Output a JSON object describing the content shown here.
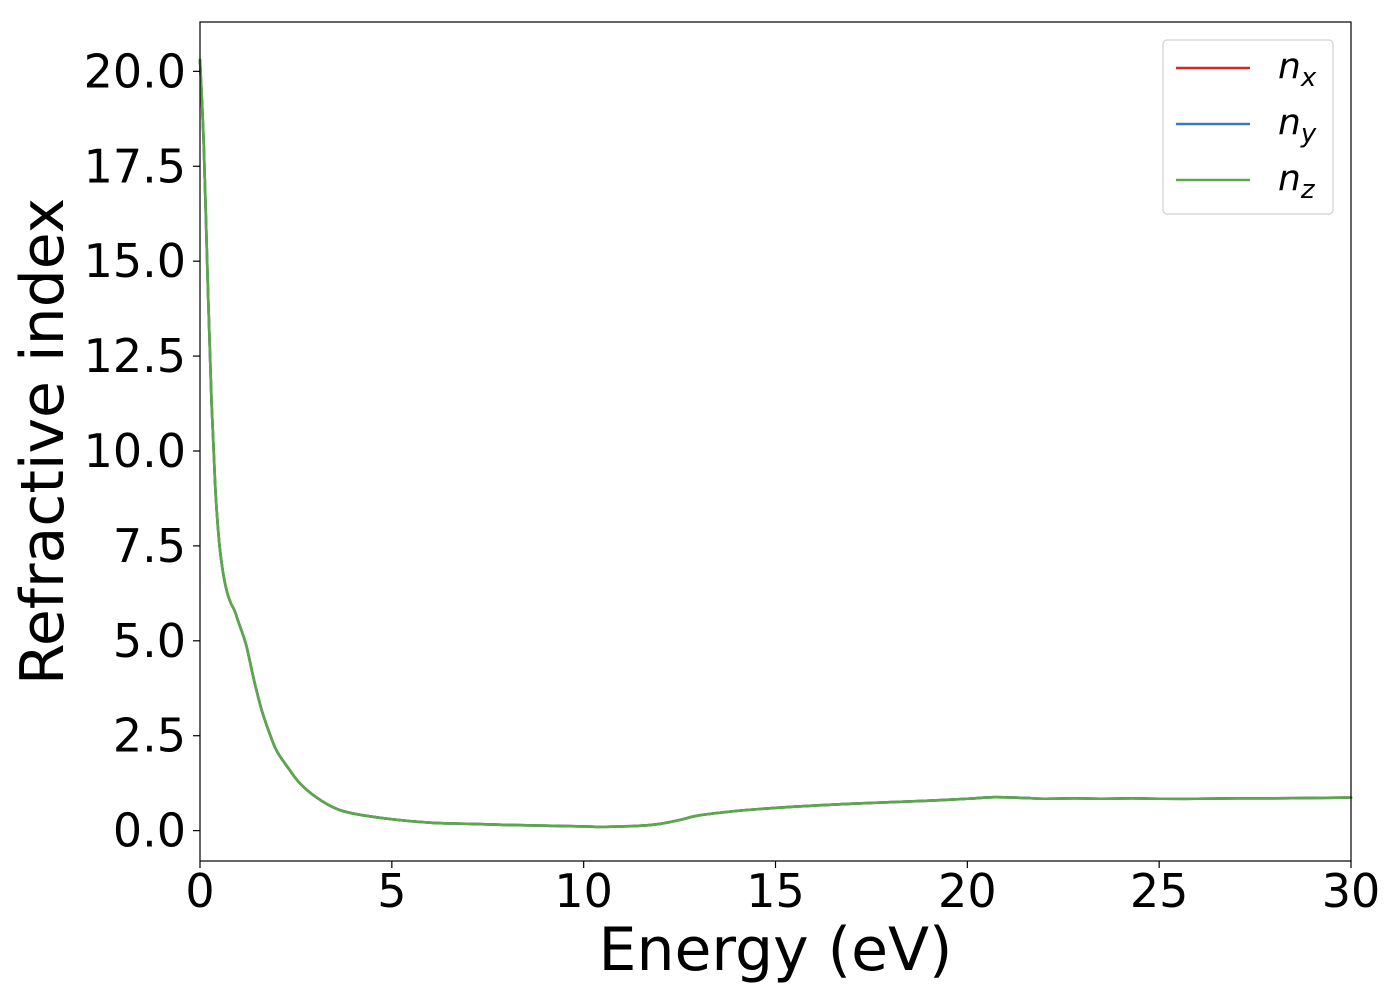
{
  "chart_data": {
    "type": "line",
    "xlabel": "Energy (eV)",
    "ylabel": "Refractive index",
    "xlim": [
      0,
      30
    ],
    "ylim": [
      -0.8,
      21.3
    ],
    "xticks": [
      0,
      5,
      10,
      15,
      20,
      25,
      30
    ],
    "xtick_labels": [
      "0",
      "5",
      "10",
      "15",
      "20",
      "25",
      "30"
    ],
    "yticks": [
      0,
      2.5,
      5,
      7.5,
      10,
      12.5,
      15,
      17.5,
      20
    ],
    "ytick_labels": [
      "0.0",
      "2.5",
      "5.0",
      "7.5",
      "10.0",
      "12.5",
      "15.0",
      "17.5",
      "20.0"
    ],
    "grid": false,
    "legend_position": "top-right",
    "x": [
      0,
      0.1,
      0.2,
      0.3,
      0.4,
      0.5,
      0.6,
      0.7,
      0.8,
      0.9,
      1.0,
      1.2,
      1.4,
      1.6,
      1.8,
      2.0,
      2.3,
      2.6,
      3.0,
      3.5,
      4.0,
      5.0,
      6.0,
      7.0,
      8.0,
      9.0,
      10.0,
      10.5,
      11.0,
      11.5,
      12.0,
      12.5,
      13.0,
      14.0,
      15.0,
      16.0,
      17.0,
      18.0,
      19.0,
      20.0,
      20.7,
      21.5,
      22.0,
      22.8,
      23.5,
      24.3,
      25.0,
      26.0,
      27.0,
      28.0,
      29.0,
      30.0
    ],
    "series": [
      {
        "name": "n_x",
        "label_base": "n",
        "label_sub": "x",
        "color": "#d62728",
        "values": [
          20.3,
          18.0,
          14.5,
          11.3,
          9.0,
          7.6,
          6.8,
          6.3,
          6.0,
          5.8,
          5.5,
          4.9,
          4.0,
          3.2,
          2.6,
          2.1,
          1.65,
          1.25,
          0.9,
          0.6,
          0.45,
          0.3,
          0.21,
          0.18,
          0.15,
          0.13,
          0.11,
          0.1,
          0.11,
          0.13,
          0.18,
          0.28,
          0.4,
          0.52,
          0.6,
          0.66,
          0.71,
          0.75,
          0.79,
          0.84,
          0.88,
          0.86,
          0.84,
          0.85,
          0.84,
          0.85,
          0.84,
          0.84,
          0.85,
          0.85,
          0.86,
          0.87
        ]
      },
      {
        "name": "n_y",
        "label_base": "n",
        "label_sub": "y",
        "color": "#3a7bbf",
        "values": [
          20.3,
          18.0,
          14.5,
          11.3,
          9.0,
          7.6,
          6.8,
          6.3,
          6.0,
          5.8,
          5.5,
          4.9,
          4.0,
          3.2,
          2.6,
          2.1,
          1.65,
          1.25,
          0.9,
          0.6,
          0.45,
          0.3,
          0.21,
          0.18,
          0.15,
          0.13,
          0.11,
          0.1,
          0.11,
          0.13,
          0.18,
          0.28,
          0.4,
          0.52,
          0.6,
          0.66,
          0.71,
          0.75,
          0.79,
          0.84,
          0.88,
          0.86,
          0.84,
          0.85,
          0.84,
          0.85,
          0.84,
          0.84,
          0.85,
          0.85,
          0.86,
          0.87
        ]
      },
      {
        "name": "n_z",
        "label_base": "n",
        "label_sub": "z",
        "color": "#59a948",
        "values": [
          20.3,
          18.0,
          14.5,
          11.3,
          9.0,
          7.6,
          6.8,
          6.3,
          6.0,
          5.8,
          5.5,
          4.9,
          4.0,
          3.2,
          2.6,
          2.1,
          1.65,
          1.25,
          0.9,
          0.6,
          0.45,
          0.3,
          0.21,
          0.18,
          0.15,
          0.13,
          0.11,
          0.1,
          0.11,
          0.13,
          0.18,
          0.28,
          0.4,
          0.52,
          0.6,
          0.66,
          0.71,
          0.75,
          0.79,
          0.84,
          0.88,
          0.86,
          0.84,
          0.85,
          0.84,
          0.85,
          0.84,
          0.84,
          0.85,
          0.85,
          0.86,
          0.87
        ]
      }
    ]
  }
}
